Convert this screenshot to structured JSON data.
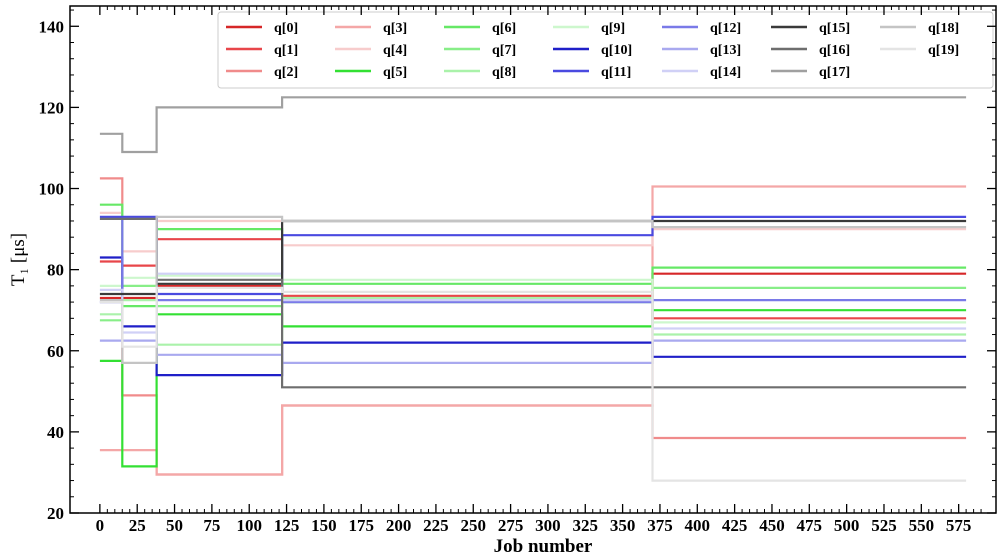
{
  "chart_data": {
    "type": "line",
    "ylabel": "T₁ [μs]",
    "xlabel": "Job number",
    "xlim": [
      -20,
      600
    ],
    "ylim": [
      20,
      145
    ],
    "x_ticks": [
      0,
      25,
      50,
      75,
      100,
      125,
      150,
      175,
      200,
      225,
      250,
      275,
      300,
      325,
      350,
      375,
      400,
      425,
      450,
      475,
      500,
      525,
      550,
      575
    ],
    "y_ticks": [
      20,
      40,
      60,
      80,
      100,
      120,
      140
    ],
    "grid": false,
    "legend_position": "top-right",
    "step_x": [
      0,
      15,
      38,
      122,
      370,
      580
    ],
    "series": [
      {
        "name": "q[0]",
        "color": "#d62728",
        "values": [
          73.0,
          73.0,
          76.0,
          73.5,
          79.0
        ]
      },
      {
        "name": "q[1]",
        "color": "#e8464a",
        "values": [
          82.0,
          81.0,
          87.5,
          73.5,
          68.0
        ]
      },
      {
        "name": "q[2]",
        "color": "#f08b8b",
        "values": [
          102.5,
          49.0,
          29.5,
          46.5,
          38.5
        ]
      },
      {
        "name": "q[3]",
        "color": "#f4a7a7",
        "values": [
          35.5,
          35.5,
          29.5,
          46.5,
          100.5
        ]
      },
      {
        "name": "q[4]",
        "color": "#f7cccc",
        "values": [
          94.0,
          84.5,
          92.0,
          86.0,
          90.0
        ]
      },
      {
        "name": "q[5]",
        "color": "#33e033",
        "values": [
          57.5,
          31.5,
          69.0,
          66.0,
          70.0
        ]
      },
      {
        "name": "q[6]",
        "color": "#66e866",
        "values": [
          96.0,
          71.0,
          90.0,
          76.5,
          80.5
        ]
      },
      {
        "name": "q[7]",
        "color": "#88ee88",
        "values": [
          67.5,
          76.0,
          71.0,
          72.0,
          75.5
        ]
      },
      {
        "name": "q[8]",
        "color": "#aaf2aa",
        "values": [
          69.0,
          72.5,
          61.5,
          73.0,
          64.0
        ]
      },
      {
        "name": "q[9]",
        "color": "#cdf7cd",
        "values": [
          76.0,
          78.0,
          78.5,
          77.5,
          67.0
        ]
      },
      {
        "name": "q[10]",
        "color": "#1f1fc8",
        "values": [
          83.0,
          66.0,
          54.0,
          62.0,
          58.5
        ]
      },
      {
        "name": "q[11]",
        "color": "#4a4ae0",
        "values": [
          93.0,
          93.0,
          74.0,
          88.5,
          93.0
        ]
      },
      {
        "name": "q[12]",
        "color": "#7a7ae8",
        "values": [
          72.0,
          92.5,
          72.5,
          72.0,
          72.5
        ]
      },
      {
        "name": "q[13]",
        "color": "#a9a9ef",
        "values": [
          62.5,
          62.5,
          59.0,
          57.0,
          62.5
        ]
      },
      {
        "name": "q[14]",
        "color": "#d0d0f6",
        "values": [
          75.0,
          64.5,
          79.0,
          72.5,
          65.5
        ]
      },
      {
        "name": "q[15]",
        "color": "#3a3a3a",
        "values": [
          74.0,
          74.0,
          76.5,
          92.0,
          92.0
        ]
      },
      {
        "name": "q[16]",
        "color": "#6e6e6e",
        "values": [
          92.5,
          92.5,
          77.5,
          51.0,
          51.0
        ]
      },
      {
        "name": "q[17]",
        "color": "#a0a0a0",
        "values": [
          113.5,
          109.0,
          120.0,
          122.5,
          122.5
        ]
      },
      {
        "name": "q[18]",
        "color": "#c4c4c4",
        "values": [
          72.5,
          57.0,
          93.0,
          92.0,
          90.5
        ]
      },
      {
        "name": "q[19]",
        "color": "#e4e4e4",
        "values": [
          72.0,
          61.0,
          75.5,
          74.5,
          28.0
        ]
      }
    ]
  }
}
